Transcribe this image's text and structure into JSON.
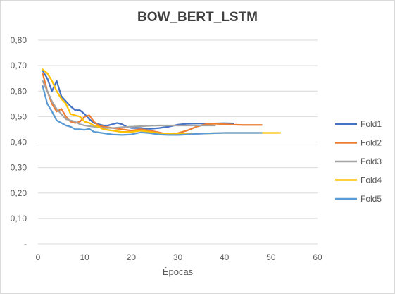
{
  "chart_data": {
    "type": "line",
    "title": "BOW_BERT_LSTM",
    "xlabel": "Épocas",
    "ylabel": "",
    "xlim": [
      0,
      60
    ],
    "ylim": [
      0,
      0.8
    ],
    "x_ticks": [
      "0",
      "10",
      "20",
      "30",
      "40",
      "50",
      "60"
    ],
    "y_ticks": [
      "-",
      "0,10",
      "0,20",
      "0,30",
      "0,40",
      "0,50",
      "0,60",
      "0,70",
      "0,80"
    ],
    "grid": "horizontal",
    "legend_position": "right",
    "series": [
      {
        "name": "Fold1",
        "color": "#4472c4",
        "points": [
          [
            1,
            0.68
          ],
          [
            2,
            0.65
          ],
          [
            3,
            0.6
          ],
          [
            4,
            0.64
          ],
          [
            5,
            0.58
          ],
          [
            6,
            0.56
          ],
          [
            7,
            0.54
          ],
          [
            8,
            0.525
          ],
          [
            9,
            0.525
          ],
          [
            10,
            0.51
          ],
          [
            11,
            0.49
          ],
          [
            12,
            0.475
          ],
          [
            13,
            0.47
          ],
          [
            14,
            0.465
          ],
          [
            15,
            0.465
          ],
          [
            16,
            0.47
          ],
          [
            17,
            0.475
          ],
          [
            18,
            0.47
          ],
          [
            19,
            0.46
          ],
          [
            20,
            0.455
          ],
          [
            22,
            0.455
          ],
          [
            24,
            0.452
          ],
          [
            26,
            0.455
          ],
          [
            28,
            0.46
          ],
          [
            30,
            0.468
          ],
          [
            32,
            0.472
          ],
          [
            34,
            0.473
          ],
          [
            36,
            0.473
          ],
          [
            38,
            0.473
          ],
          [
            40,
            0.474
          ],
          [
            42,
            0.473
          ]
        ]
      },
      {
        "name": "Fold2",
        "color": "#ed7d31",
        "points": [
          [
            1,
            0.67
          ],
          [
            2,
            0.6
          ],
          [
            3,
            0.55
          ],
          [
            4,
            0.52
          ],
          [
            5,
            0.53
          ],
          [
            6,
            0.5
          ],
          [
            7,
            0.48
          ],
          [
            8,
            0.475
          ],
          [
            9,
            0.48
          ],
          [
            10,
            0.5
          ],
          [
            11,
            0.505
          ],
          [
            12,
            0.48
          ],
          [
            13,
            0.465
          ],
          [
            14,
            0.46
          ],
          [
            15,
            0.458
          ],
          [
            16,
            0.455
          ],
          [
            18,
            0.45
          ],
          [
            20,
            0.445
          ],
          [
            22,
            0.45
          ],
          [
            24,
            0.445
          ],
          [
            26,
            0.438
          ],
          [
            28,
            0.43
          ],
          [
            30,
            0.435
          ],
          [
            32,
            0.445
          ],
          [
            34,
            0.46
          ],
          [
            36,
            0.47
          ],
          [
            38,
            0.472
          ],
          [
            40,
            0.47
          ],
          [
            42,
            0.468
          ],
          [
            44,
            0.467
          ],
          [
            46,
            0.467
          ],
          [
            48,
            0.467
          ]
        ]
      },
      {
        "name": "Fold3",
        "color": "#a5a5a5",
        "points": [
          [
            1,
            0.64
          ],
          [
            2,
            0.6
          ],
          [
            3,
            0.56
          ],
          [
            4,
            0.53
          ],
          [
            5,
            0.51
          ],
          [
            6,
            0.49
          ],
          [
            7,
            0.485
          ],
          [
            8,
            0.48
          ],
          [
            9,
            0.47
          ],
          [
            10,
            0.465
          ],
          [
            12,
            0.46
          ],
          [
            14,
            0.455
          ],
          [
            16,
            0.455
          ],
          [
            18,
            0.458
          ],
          [
            20,
            0.46
          ],
          [
            22,
            0.462
          ],
          [
            24,
            0.464
          ],
          [
            26,
            0.465
          ],
          [
            28,
            0.465
          ],
          [
            30,
            0.465
          ],
          [
            32,
            0.465
          ],
          [
            34,
            0.465
          ],
          [
            36,
            0.465
          ],
          [
            38,
            0.465
          ]
        ]
      },
      {
        "name": "Fold4",
        "color": "#ffc000",
        "points": [
          [
            1,
            0.685
          ],
          [
            2,
            0.67
          ],
          [
            3,
            0.64
          ],
          [
            4,
            0.6
          ],
          [
            5,
            0.57
          ],
          [
            6,
            0.55
          ],
          [
            7,
            0.51
          ],
          [
            8,
            0.505
          ],
          [
            9,
            0.5
          ],
          [
            10,
            0.48
          ],
          [
            11,
            0.475
          ],
          [
            12,
            0.465
          ],
          [
            13,
            0.46
          ],
          [
            14,
            0.45
          ],
          [
            16,
            0.445
          ],
          [
            18,
            0.44
          ],
          [
            20,
            0.44
          ],
          [
            22,
            0.445
          ],
          [
            24,
            0.44
          ],
          [
            26,
            0.435
          ],
          [
            28,
            0.432
          ],
          [
            30,
            0.432
          ],
          [
            32,
            0.432
          ],
          [
            34,
            0.433
          ],
          [
            36,
            0.434
          ],
          [
            38,
            0.435
          ],
          [
            40,
            0.436
          ],
          [
            44,
            0.436
          ],
          [
            48,
            0.436
          ],
          [
            52,
            0.436
          ]
        ]
      },
      {
        "name": "Fold5",
        "color": "#5b9bd5",
        "points": [
          [
            1,
            0.62
          ],
          [
            2,
            0.55
          ],
          [
            3,
            0.52
          ],
          [
            4,
            0.485
          ],
          [
            5,
            0.475
          ],
          [
            6,
            0.465
          ],
          [
            7,
            0.46
          ],
          [
            8,
            0.45
          ],
          [
            9,
            0.45
          ],
          [
            10,
            0.448
          ],
          [
            11,
            0.452
          ],
          [
            12,
            0.44
          ],
          [
            13,
            0.438
          ],
          [
            14,
            0.435
          ],
          [
            16,
            0.43
          ],
          [
            18,
            0.428
          ],
          [
            20,
            0.43
          ],
          [
            22,
            0.438
          ],
          [
            24,
            0.435
          ],
          [
            26,
            0.43
          ],
          [
            28,
            0.428
          ],
          [
            30,
            0.428
          ],
          [
            32,
            0.43
          ],
          [
            34,
            0.432
          ],
          [
            36,
            0.434
          ],
          [
            38,
            0.435
          ],
          [
            40,
            0.436
          ],
          [
            44,
            0.436
          ],
          [
            48,
            0.436
          ]
        ]
      }
    ]
  }
}
